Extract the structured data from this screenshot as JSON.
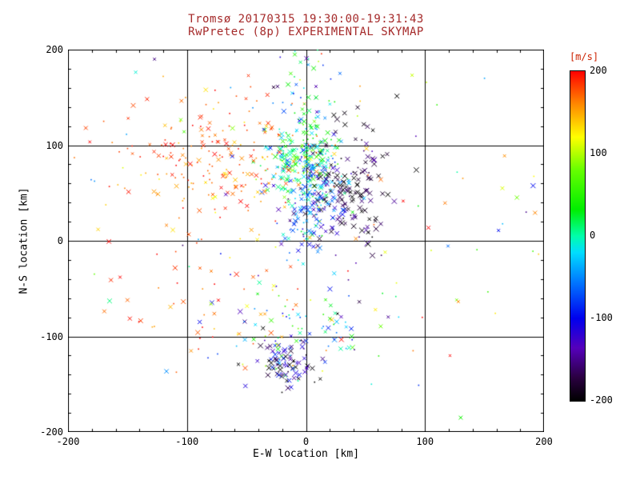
{
  "page": {
    "background": "#ffffff"
  },
  "chart_data": {
    "type": "scatter",
    "title": "Tromsø 20170315 19:30:00-19:31:43",
    "subtitle": "RwPretec (8p) EXPERIMENTAL SKYMAP",
    "title_color": "#a52a2a",
    "xlabel": "E-W location [km]",
    "ylabel": "N-S location [km]",
    "xlim": [
      -200,
      200
    ],
    "ylim": [
      -200,
      200
    ],
    "xticks": [
      -200,
      -100,
      0,
      100,
      200
    ],
    "yticks": [
      -200,
      -100,
      0,
      100,
      200
    ],
    "major_step": 100,
    "minor_step": 20,
    "grid": {
      "lines": [
        -100,
        0,
        100
      ],
      "color": "#000000"
    },
    "frame_color": "#000000",
    "colorbar": {
      "label": "[m/s]",
      "label_color": "#cc2200",
      "min": -200,
      "max": 200,
      "ticks": [
        200,
        100,
        0,
        -100,
        -200
      ]
    },
    "colormap": [
      {
        "t": 0.0,
        "c": "#000000"
      },
      {
        "t": 0.07,
        "c": "#2a0040"
      },
      {
        "t": 0.16,
        "c": "#5500bb"
      },
      {
        "t": 0.25,
        "c": "#0000ee"
      },
      {
        "t": 0.36,
        "c": "#0077ff"
      },
      {
        "t": 0.45,
        "c": "#00ddff"
      },
      {
        "t": 0.5,
        "c": "#00ffaa"
      },
      {
        "t": 0.58,
        "c": "#00ee00"
      },
      {
        "t": 0.7,
        "c": "#66ff00"
      },
      {
        "t": 0.8,
        "c": "#ffff00"
      },
      {
        "t": 0.9,
        "c": "#ff8800"
      },
      {
        "t": 1.0,
        "c": "#ff0000"
      }
    ],
    "seed": 42,
    "clusters": [
      {
        "name": "core-upper-green",
        "cx": -2,
        "cy": 85,
        "sx": 15,
        "sy": 20,
        "n": 240,
        "vmean": 15,
        "vsd": 55,
        "xfrac": 0.55,
        "size": 2.2
      },
      {
        "name": "core-lower-cyan",
        "cx": 6,
        "cy": 38,
        "sx": 14,
        "sy": 24,
        "n": 170,
        "vmean": -75,
        "vsd": 55,
        "xfrac": 0.6,
        "size": 2.2
      },
      {
        "name": "west-red-band",
        "cx": -65,
        "cy": 88,
        "sx": 42,
        "sy": 28,
        "n": 190,
        "vmean": 172,
        "vsd": 22,
        "xfrac": 0.45,
        "size": 2.0
      },
      {
        "name": "west-red-sparse",
        "cx": -85,
        "cy": 15,
        "sx": 55,
        "sy": 55,
        "n": 70,
        "vmean": 165,
        "vsd": 28,
        "xfrac": 0.5,
        "size": 2.0
      },
      {
        "name": "east-dark",
        "cx": 38,
        "cy": 52,
        "sx": 17,
        "sy": 34,
        "n": 150,
        "vmean": -175,
        "vsd": 22,
        "xfrac": 0.75,
        "size": 2.4
      },
      {
        "name": "bottom-mixed",
        "cx": -5,
        "cy": -100,
        "sx": 32,
        "sy": 22,
        "n": 90,
        "vmean": -20,
        "vsd": 80,
        "xfrac": 0.55,
        "size": 2.2
      },
      {
        "name": "bottom-dark",
        "cx": -15,
        "cy": -128,
        "sx": 14,
        "sy": 12,
        "n": 70,
        "vmean": -160,
        "vsd": 45,
        "xfrac": 0.8,
        "size": 2.4
      },
      {
        "name": "bottom-west-red",
        "cx": -60,
        "cy": -92,
        "sx": 35,
        "sy": 28,
        "n": 30,
        "vmean": 160,
        "vsd": 30,
        "xfrac": 0.6,
        "size": 2.2
      },
      {
        "name": "north-column",
        "cx": 2,
        "cy": 150,
        "sx": 13,
        "sy": 28,
        "n": 55,
        "vmean": -25,
        "vsd": 75,
        "xfrac": 0.5,
        "size": 2.0
      },
      {
        "name": "wide-background",
        "cx": -10,
        "cy": 10,
        "sx": 110,
        "sy": 85,
        "n": 85,
        "vmean": 20,
        "vsd": 130,
        "xfrac": 0.5,
        "size": 2.0
      },
      {
        "name": "east-warm-sparse",
        "cx": 120,
        "cy": 20,
        "sx": 50,
        "sy": 70,
        "n": 25,
        "vmean": 60,
        "vsd": 100,
        "xfrac": 0.5,
        "size": 2.2
      }
    ],
    "extra_points": [
      {
        "x": -185,
        "y": 118,
        "v": 180,
        "m": "x"
      },
      {
        "x": -170,
        "y": 125,
        "v": 175,
        "m": "dot"
      },
      {
        "x": -120,
        "y": 172,
        "v": 150,
        "m": "dot"
      },
      {
        "x": 130,
        "y": -185,
        "v": 40,
        "m": "x"
      },
      {
        "x": 165,
        "y": 55,
        "v": 110,
        "m": "x"
      },
      {
        "x": 185,
        "y": 30,
        "v": -150,
        "m": "dot"
      },
      {
        "x": 90,
        "y": -115,
        "v": 165,
        "m": "dot"
      },
      {
        "x": -150,
        "y": -62,
        "v": 170,
        "m": "x"
      },
      {
        "x": 55,
        "y": -150,
        "v": -10,
        "m": "dot"
      },
      {
        "x": 150,
        "y": 170,
        "v": -40,
        "m": "dot"
      }
    ]
  }
}
